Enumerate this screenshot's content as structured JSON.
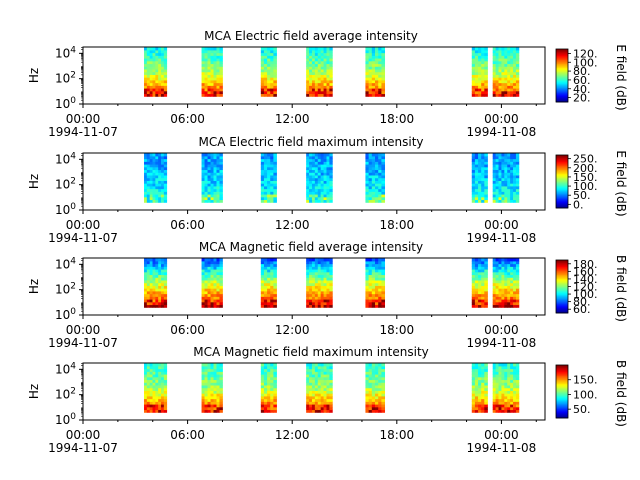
{
  "x_ticks": [
    {
      "time": "00:00",
      "date": "1994-11-07"
    },
    {
      "time": "06:00",
      "date": ""
    },
    {
      "time": "12:00",
      "date": ""
    },
    {
      "time": "18:00",
      "date": ""
    },
    {
      "time": "00:00",
      "date": "1994-11-08"
    }
  ],
  "ylabel": "Hz",
  "y_ticks": [
    {
      "base": "10",
      "exp": "0"
    },
    {
      "base": "10",
      "exp": "2"
    },
    {
      "base": "10",
      "exp": "4"
    }
  ],
  "chart_data": [
    {
      "type": "heatmap",
      "title": "MCA  Electric field average intensity",
      "ylabel": "Hz",
      "yscale": "log",
      "ylim": [
        1,
        31623
      ],
      "xlim": [
        0,
        26.5
      ],
      "colorbar_label": "E field (dB)",
      "colorbar_ticks": [
        "20.",
        "40.",
        "60.",
        "80.",
        "100.",
        "120."
      ],
      "colorbar_range": [
        10,
        130
      ],
      "intervals": [
        [
          3.5,
          4.8
        ],
        [
          6.8,
          8.0
        ],
        [
          10.2,
          11.1
        ],
        [
          12.8,
          14.3
        ],
        [
          16.2,
          17.3
        ],
        [
          22.3,
          23.2
        ],
        [
          23.5,
          25.0
        ]
      ],
      "typical_levels": {
        "low_freq": 110,
        "mid_freq": 75,
        "high_freq": 55
      }
    },
    {
      "type": "heatmap",
      "title": "MCA  Electric field maximum intensity",
      "ylabel": "Hz",
      "yscale": "log",
      "ylim": [
        1,
        31623
      ],
      "xlim": [
        0,
        26.5
      ],
      "colorbar_label": "E field (dB)",
      "colorbar_ticks": [
        "0.",
        "50.",
        "100.",
        "150.",
        "200.",
        "250."
      ],
      "colorbar_range": [
        -20,
        270
      ],
      "intervals": [
        [
          3.5,
          4.8
        ],
        [
          6.8,
          8.0
        ],
        [
          10.2,
          11.1
        ],
        [
          12.8,
          14.3
        ],
        [
          16.2,
          17.3
        ],
        [
          22.3,
          23.2
        ],
        [
          23.5,
          25.0
        ]
      ],
      "typical_levels": {
        "low_freq": 95,
        "mid_freq": 75,
        "high_freq": 60
      }
    },
    {
      "type": "heatmap",
      "title": "MCA  Magnetic field average intensity",
      "ylabel": "Hz",
      "yscale": "log",
      "ylim": [
        1,
        31623
      ],
      "xlim": [
        0,
        26.5
      ],
      "colorbar_label": "B field (dB)",
      "colorbar_ticks": [
        "60.",
        "80.",
        "100.",
        "120.",
        "140.",
        "160.",
        "180."
      ],
      "colorbar_range": [
        50,
        190
      ],
      "intervals": [
        [
          3.5,
          4.8
        ],
        [
          6.8,
          8.0
        ],
        [
          10.2,
          11.1
        ],
        [
          12.8,
          14.3
        ],
        [
          16.2,
          17.3
        ],
        [
          22.3,
          23.2
        ],
        [
          23.5,
          25.0
        ]
      ],
      "typical_levels": {
        "low_freq": 170,
        "mid_freq": 130,
        "high_freq": 80
      }
    },
    {
      "type": "heatmap",
      "title": "MCA  Magnetic field maximum intensity",
      "ylabel": "Hz",
      "yscale": "log",
      "ylim": [
        1,
        31623
      ],
      "xlim": [
        0,
        26.5
      ],
      "colorbar_label": "B field (dB)",
      "colorbar_ticks": [
        "50.",
        "100.",
        "150."
      ],
      "colorbar_range": [
        20,
        200
      ],
      "intervals": [
        [
          3.5,
          4.8
        ],
        [
          6.8,
          8.0
        ],
        [
          10.2,
          11.1
        ],
        [
          12.8,
          14.3
        ],
        [
          16.2,
          17.3
        ],
        [
          22.3,
          23.2
        ],
        [
          23.5,
          25.0
        ]
      ],
      "typical_levels": {
        "low_freq": 170,
        "mid_freq": 115,
        "high_freq": 95
      }
    }
  ]
}
